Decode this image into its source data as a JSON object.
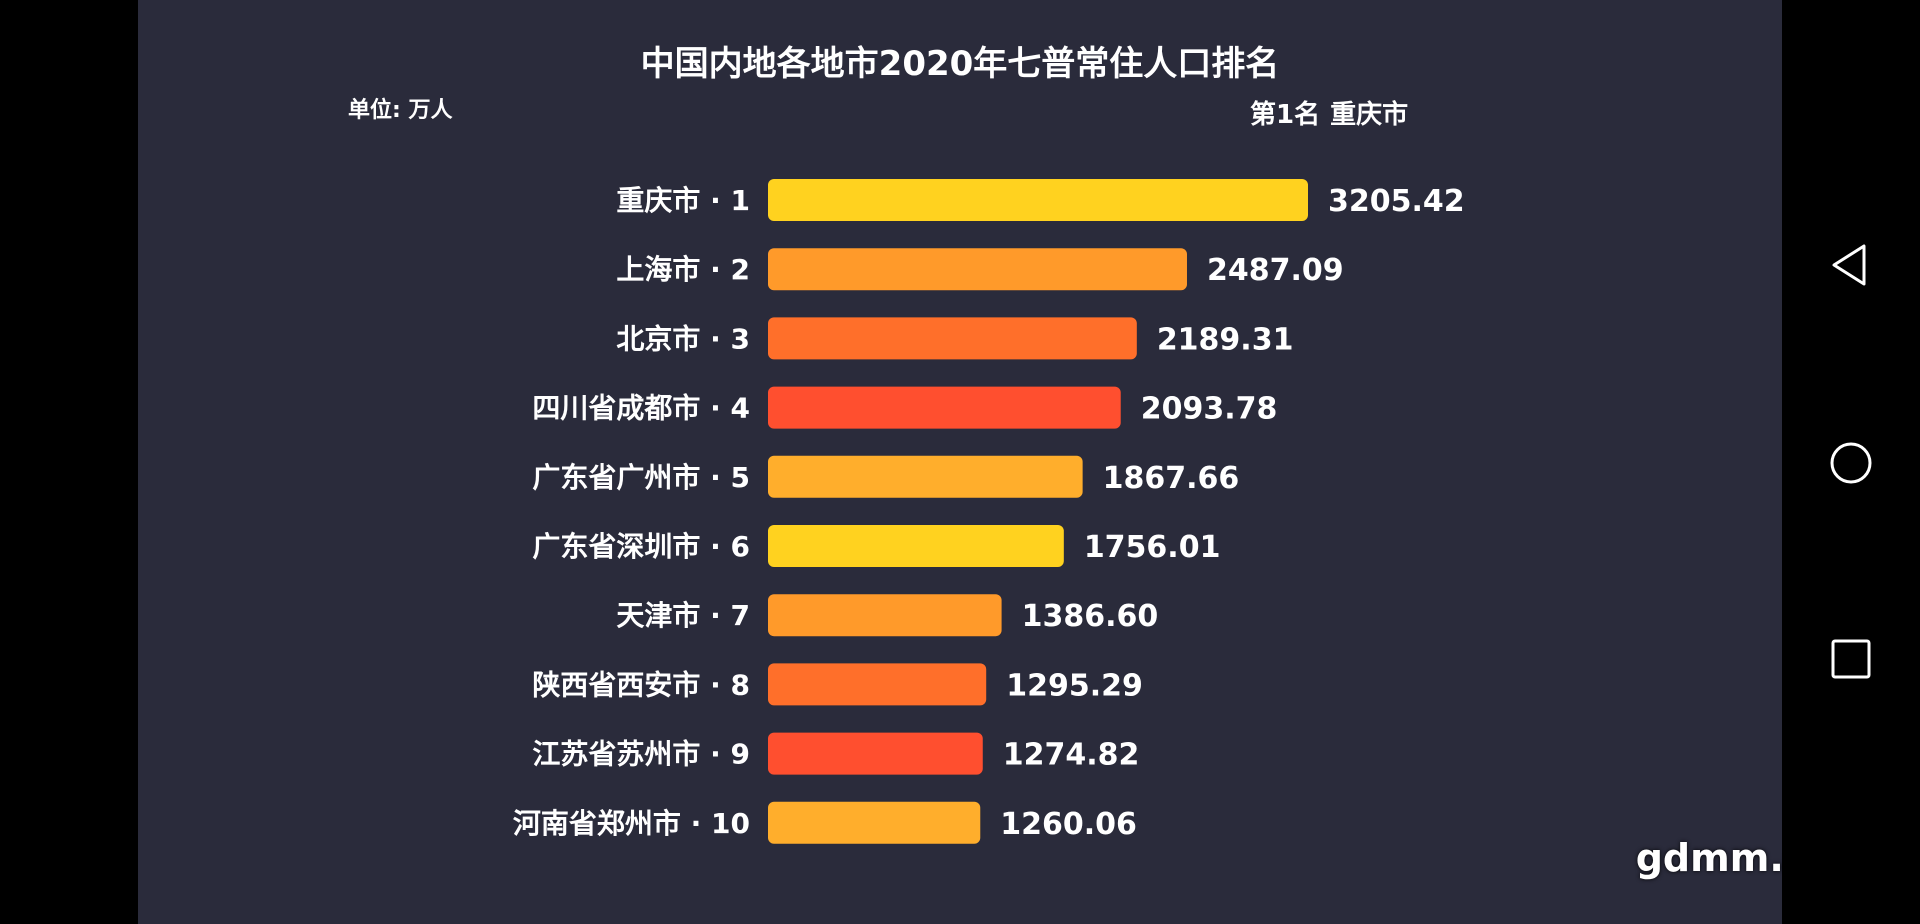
{
  "chart_data": {
    "type": "bar",
    "orientation": "horizontal",
    "title": "中国内地各地市2020年七普常住人口排名",
    "unit": "单位: 万人",
    "rank_prefix": "第1名",
    "rank_name": "重庆市",
    "categories": [
      "重庆市 · 1",
      "上海市 · 2",
      "北京市 · 3",
      "四川省成都市 · 4",
      "广东省广州市 · 5",
      "广东省深圳市 · 6",
      "天津市 · 7",
      "陕西省西安市 · 8",
      "江苏省苏州市 · 9",
      "河南省郑州市 · 10"
    ],
    "values": [
      3205.42,
      2487.09,
      2189.31,
      2093.78,
      1867.66,
      1756.01,
      1386.6,
      1295.29,
      1274.82,
      1260.06
    ],
    "value_labels": [
      "3205.42",
      "2487.09",
      "2189.31",
      "2093.78",
      "1867.66",
      "1756.01",
      "1386.60",
      "1295.29",
      "1274.82",
      "1260.06"
    ],
    "colors": [
      "#ffd21f",
      "#ff9a2a",
      "#ff6f2a",
      "#ff4f2f",
      "#ffae2c",
      "#ffd21f",
      "#ff9a2a",
      "#ff6f2a",
      "#ff4f2f",
      "#ffae2c"
    ],
    "xlim": [
      0,
      3205.42
    ],
    "grid": false,
    "legend": "none"
  },
  "watermark": "gdmm.com",
  "nav": {
    "back_icon": "back-triangle-icon",
    "home_icon": "home-circle-icon",
    "recents_icon": "recents-square-icon"
  }
}
